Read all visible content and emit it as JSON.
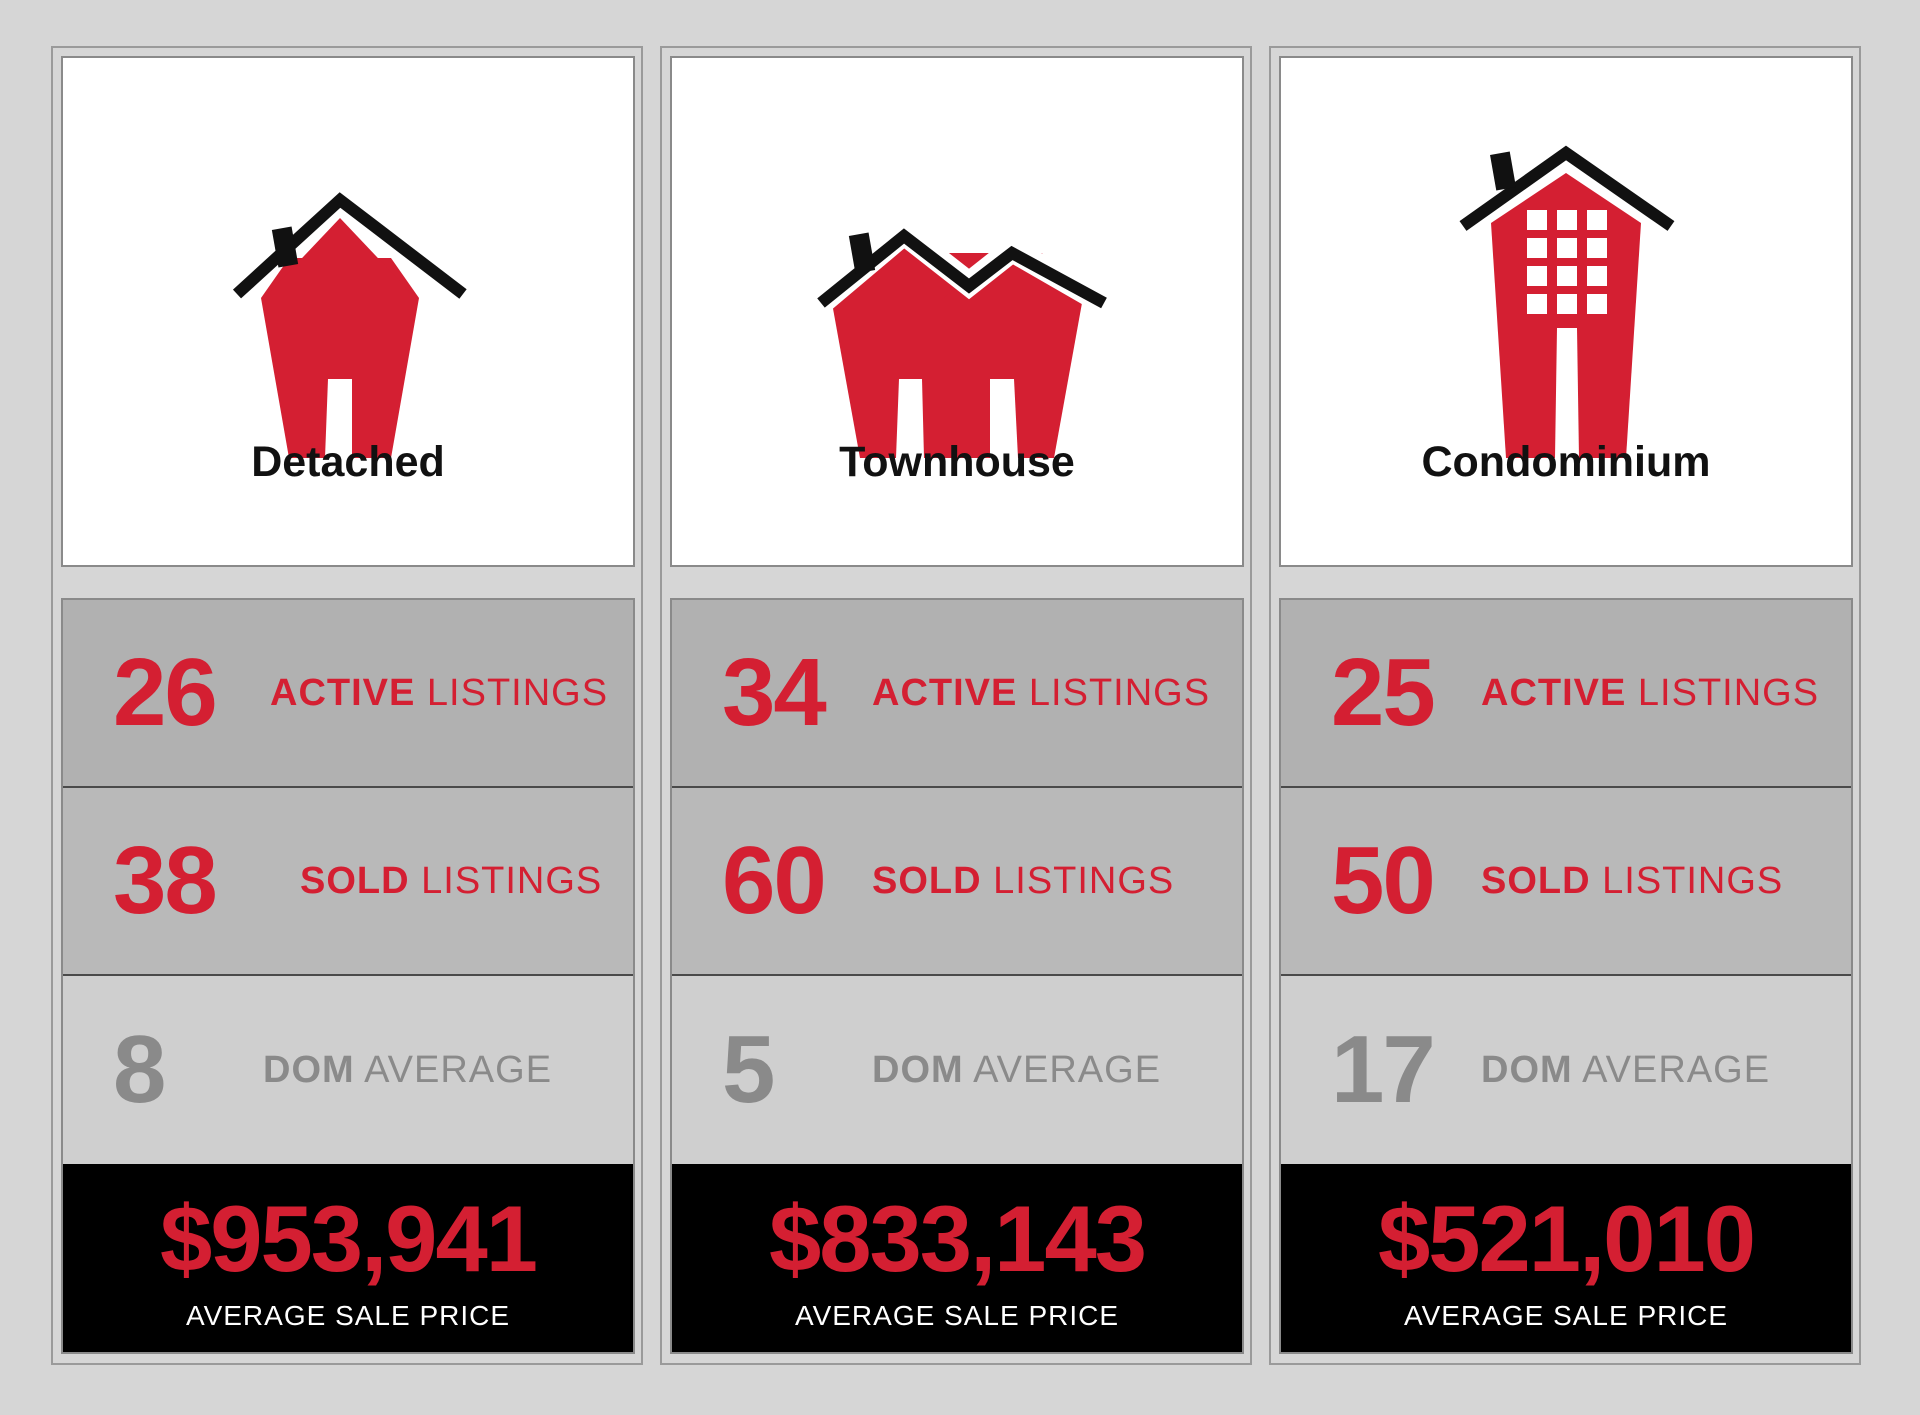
{
  "brand": {
    "red": "#d41f32",
    "black": "#111111",
    "grey": "#8a8a8a"
  },
  "columns": [
    {
      "type": "Detached",
      "icon": "detached-house-icon",
      "active": {
        "value": "26",
        "strong": "ACTIVE",
        "rest": "LISTINGS"
      },
      "sold": {
        "value": "38",
        "strong": "SOLD",
        "rest": "LISTINGS"
      },
      "dom": {
        "value": "8",
        "strong": "DOM",
        "rest": "AVERAGE"
      },
      "price": {
        "value": "$953,941",
        "caption": "AVERAGE SALE PRICE"
      }
    },
    {
      "type": "Townhouse",
      "icon": "townhouse-icon",
      "active": {
        "value": "34",
        "strong": "ACTIVE",
        "rest": "LISTINGS"
      },
      "sold": {
        "value": "60",
        "strong": "SOLD",
        "rest": "LISTINGS"
      },
      "dom": {
        "value": "5",
        "strong": "DOM",
        "rest": "AVERAGE"
      },
      "price": {
        "value": "$833,143",
        "caption": "AVERAGE SALE PRICE"
      }
    },
    {
      "type": "Condominium",
      "icon": "condominium-building-icon",
      "active": {
        "value": "25",
        "strong": "ACTIVE",
        "rest": "LISTINGS"
      },
      "sold": {
        "value": "50",
        "strong": "SOLD",
        "rest": "LISTINGS"
      },
      "dom": {
        "value": "17",
        "strong": "DOM",
        "rest": "AVERAGE"
      },
      "price": {
        "value": "$521,010",
        "caption": "AVERAGE SALE PRICE"
      }
    }
  ]
}
